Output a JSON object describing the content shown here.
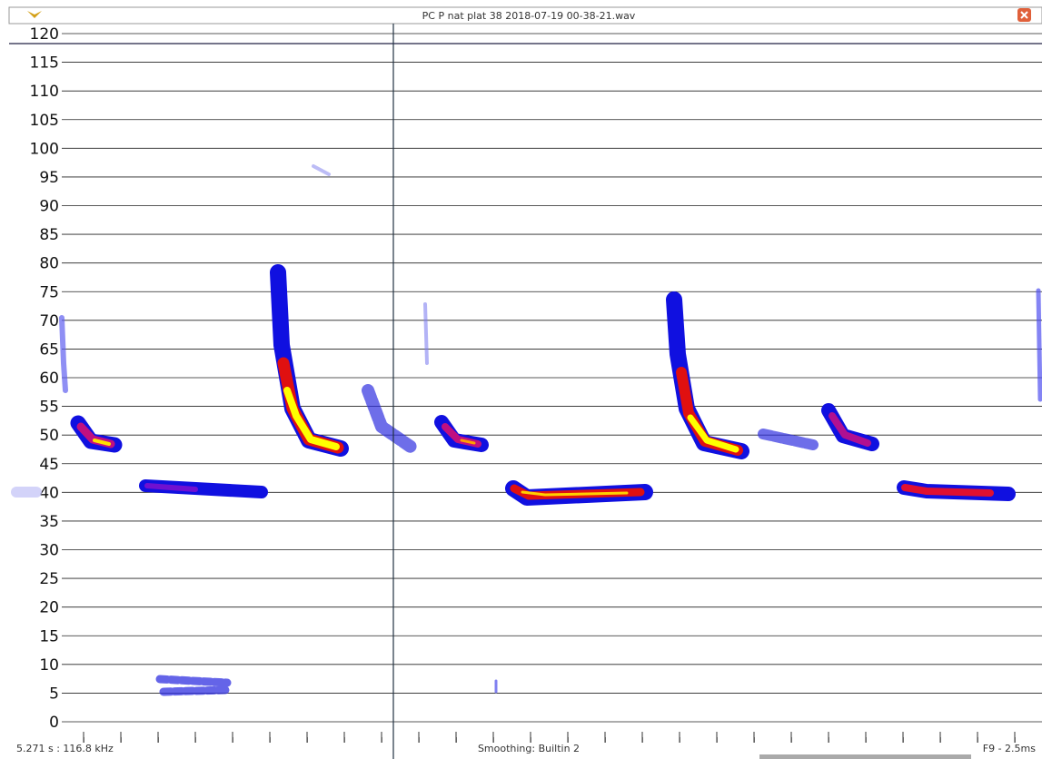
{
  "window": {
    "title": "PC P nat plat 38 2018-07-19 00-38-21.wav"
  },
  "axis": {
    "yticks": [
      0,
      5,
      10,
      15,
      20,
      25,
      30,
      35,
      40,
      45,
      50,
      55,
      60,
      65,
      70,
      75,
      80,
      85,
      90,
      95,
      100,
      105,
      110,
      115,
      120
    ],
    "ylim": [
      0,
      120
    ]
  },
  "status": {
    "position": "5.271 s : 116.8 kHz",
    "smoothing": "Smoothing: Builtin 2",
    "mode": "F9 - 2.5ms"
  }
}
